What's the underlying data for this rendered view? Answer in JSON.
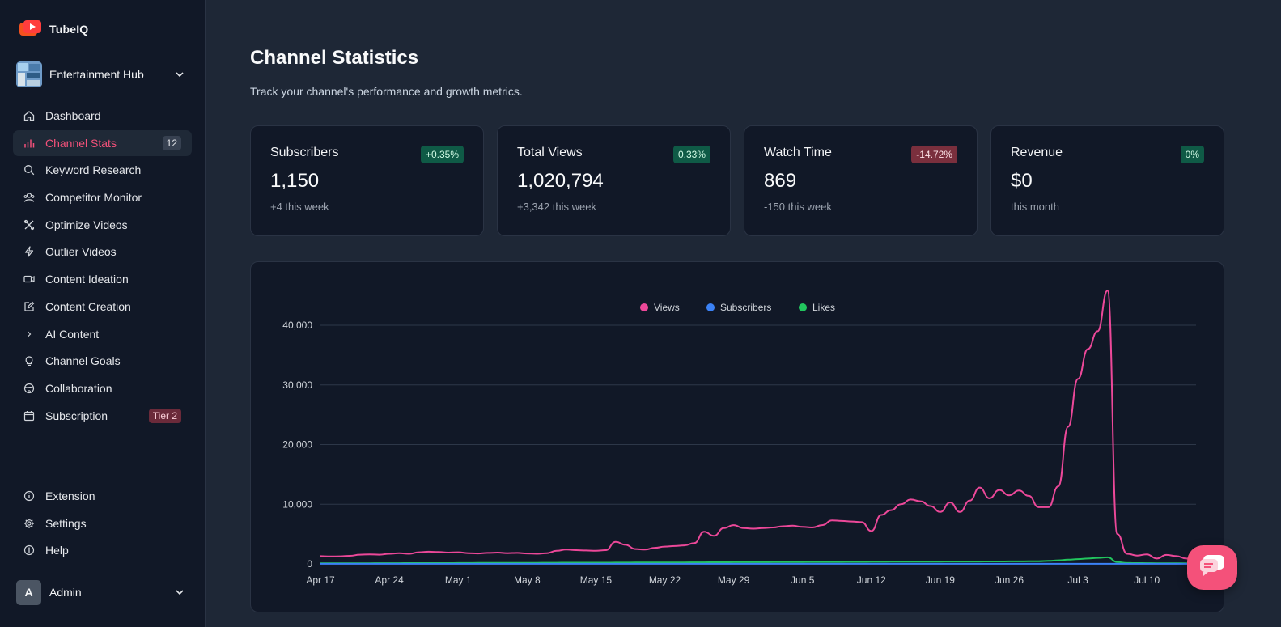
{
  "app": {
    "name": "TubeIQ",
    "brand_color": "#f4517a"
  },
  "channel_selector": {
    "name": "Entertainment Hub"
  },
  "sidebar": {
    "items": [
      {
        "label": "Dashboard",
        "icon": "home-icon"
      },
      {
        "label": "Channel Stats",
        "icon": "bar-chart-icon",
        "active": true,
        "badge": "12"
      },
      {
        "label": "Keyword Research",
        "icon": "search-icon"
      },
      {
        "label": "Competitor Monitor",
        "icon": "users-icon"
      },
      {
        "label": "Optimize Videos",
        "icon": "tools-icon"
      },
      {
        "label": "Outlier Videos",
        "icon": "zap-icon"
      },
      {
        "label": "Content Ideation",
        "icon": "video-icon"
      },
      {
        "label": "Content Creation",
        "icon": "edit-icon"
      },
      {
        "label": "AI Content",
        "icon": "chevron-right-icon"
      },
      {
        "label": "Channel Goals",
        "icon": "lightbulb-icon"
      },
      {
        "label": "Collaboration",
        "icon": "globe-icon"
      },
      {
        "label": "Subscription",
        "icon": "calendar-icon",
        "badge": "Tier 2"
      }
    ],
    "bottom_items": [
      {
        "label": "Extension",
        "icon": "info-icon"
      },
      {
        "label": "Settings",
        "icon": "gear-icon"
      },
      {
        "label": "Help",
        "icon": "info-icon"
      }
    ],
    "user": {
      "initial": "A",
      "name": "Admin"
    }
  },
  "page": {
    "title": "Channel Statistics",
    "subtitle": "Track your channel's performance and growth metrics."
  },
  "cards": [
    {
      "label": "Subscribers",
      "value": "1,150",
      "delta": "+4 this week",
      "chip": "+0.35%",
      "trend": "pos"
    },
    {
      "label": "Total Views",
      "value": "1,020,794",
      "delta": "+3,342 this week",
      "chip": "0.33%",
      "trend": "pos"
    },
    {
      "label": "Watch Time",
      "value": "869",
      "delta": "-150 this week",
      "chip": "-14.72%",
      "trend": "neg"
    },
    {
      "label": "Revenue",
      "value": "$0",
      "delta": "this month",
      "chip": "0%",
      "trend": "pos"
    }
  ],
  "chart_data": {
    "type": "line",
    "title": "",
    "xlabel": "",
    "ylabel": "",
    "ylim": [
      0,
      40000
    ],
    "y_ticks": [
      "0",
      "10,000",
      "20,000",
      "30,000",
      "40,000"
    ],
    "x_ticks": [
      "Apr 17",
      "Apr 24",
      "May 1",
      "May 8",
      "May 15",
      "May 22",
      "May 29",
      "Jun 5",
      "Jun 12",
      "Jun 19",
      "Jun 26",
      "Jul 3",
      "Jul 10"
    ],
    "legend_position": "top-center",
    "days": 90,
    "series": [
      {
        "name": "Views",
        "color": "#ec4899",
        "values": [
          1300,
          1250,
          1280,
          1350,
          1550,
          1600,
          1550,
          1700,
          1800,
          1700,
          1950,
          2050,
          2000,
          1900,
          1950,
          1800,
          1750,
          1850,
          1900,
          1800,
          1850,
          1750,
          1700,
          1800,
          2200,
          2400,
          2300,
          2250,
          2200,
          2300,
          3700,
          3200,
          2500,
          2400,
          2700,
          2900,
          3000,
          3100,
          3500,
          5400,
          4700,
          6000,
          6500,
          6000,
          5900,
          6000,
          6100,
          6300,
          6400,
          6200,
          6100,
          6500,
          7300,
          7200,
          7100,
          7000,
          5500,
          8200,
          9000,
          10000,
          10800,
          10500,
          9700,
          8700,
          10300,
          8700,
          10600,
          12800,
          11000,
          12400,
          11500,
          12300,
          11400,
          9500,
          9500,
          13000,
          23000,
          31000,
          36000,
          39000,
          45800,
          5000,
          1700,
          1400,
          1600,
          900,
          1500,
          1300,
          900,
          700
        ]
      },
      {
        "name": "Subscribers",
        "color": "#3b82f6",
        "values": [
          10,
          10,
          11,
          11,
          11,
          12,
          12,
          12,
          12,
          12,
          13,
          13,
          13,
          13,
          13,
          13,
          13,
          13,
          13,
          13,
          13,
          13,
          13,
          13,
          13,
          13,
          13,
          13,
          13,
          13,
          13,
          13,
          13,
          13,
          13,
          13,
          13,
          14,
          14,
          14,
          14,
          14,
          14,
          14,
          14,
          14,
          14,
          14,
          14,
          14,
          14,
          14,
          14,
          14,
          14,
          14,
          14,
          14,
          14,
          14,
          14,
          14,
          14,
          14,
          14,
          14,
          14,
          14,
          14,
          14,
          14,
          14,
          14,
          14,
          14,
          14,
          14,
          14,
          14,
          14,
          14,
          14,
          14,
          14,
          14,
          14,
          14,
          14,
          14,
          14
        ]
      },
      {
        "name": "Likes",
        "color": "#22c55e",
        "values": [
          100,
          100,
          100,
          110,
          110,
          110,
          120,
          120,
          120,
          130,
          130,
          140,
          140,
          140,
          150,
          150,
          160,
          160,
          170,
          170,
          170,
          180,
          180,
          190,
          190,
          200,
          200,
          200,
          210,
          210,
          220,
          220,
          230,
          230,
          240,
          240,
          250,
          250,
          260,
          260,
          270,
          270,
          280,
          280,
          290,
          290,
          300,
          300,
          310,
          310,
          320,
          320,
          330,
          330,
          340,
          340,
          350,
          350,
          360,
          360,
          370,
          370,
          380,
          380,
          390,
          390,
          400,
          400,
          410,
          410,
          420,
          420,
          430,
          440,
          500,
          600,
          700,
          800,
          900,
          1000,
          1100,
          300,
          150,
          130,
          120,
          110,
          100,
          100,
          90,
          80
        ]
      }
    ]
  },
  "colors": {
    "positive_chip": "#0f5a46",
    "negative_chip": "#7a2f3d",
    "active_nav": "#f4517a"
  }
}
